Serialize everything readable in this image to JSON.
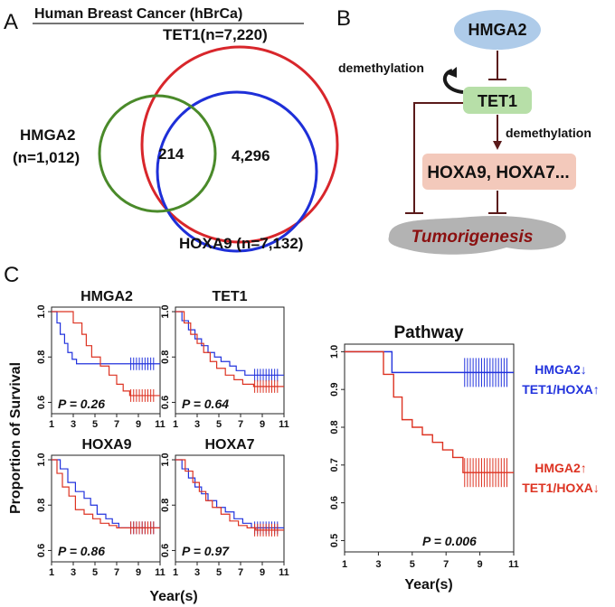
{
  "panel_a": {
    "letter": "A",
    "title": "Human Breast Cancer (hBrCa)",
    "tet1_label": "TET1(n=7,220)",
    "hmga2_label_1": "HMGA2",
    "hmga2_label_2": "(n=1,012)",
    "overlap_all": "214",
    "overlap_tet1_hoxa9": "4,296",
    "hoxa9_label": "HOXA9 (n=7,132)",
    "colors": {
      "hmga2": "#4a8a2a",
      "tet1": "#d8262b",
      "hoxa9": "#1e2fd8"
    }
  },
  "panel_b": {
    "letter": "B",
    "hmga2": "HMGA2",
    "tet1": "TET1",
    "demethylation_left": "demethylation",
    "demethylation_right": "demethylation",
    "targets": "HOXA9, HOXA7...",
    "outcome": "Tumorigenesis",
    "colors": {
      "hmga2_fill": "#aecbe9",
      "tet1_fill": "#b7dfa8",
      "targets_fill": "#f3c9bb",
      "arrow": "#5a1a1a",
      "outcome_text": "#8b1010"
    }
  },
  "panel_c": {
    "letter": "C",
    "ylabel": "Proportion of Survival",
    "xlabel": "Year(s)",
    "colors": {
      "blue": "#2233dd",
      "red": "#dd3322"
    }
  },
  "chart_data": [
    {
      "type": "line",
      "title": "HMGA2",
      "annotation": "P = 0.26",
      "xticks": [
        "1",
        "3",
        "5",
        "7",
        "9",
        "11"
      ],
      "yticks": [
        "0.6",
        "0.8",
        "1.0"
      ],
      "xlim": [
        1,
        11
      ],
      "ylim": [
        0.55,
        1.02
      ],
      "series": [
        {
          "x": [
            1,
            1.5,
            1.8,
            2.2,
            2.5,
            2.9,
            3.3,
            11
          ],
          "y": [
            1.0,
            0.95,
            0.9,
            0.86,
            0.82,
            0.79,
            0.77,
            0.77
          ]
        },
        {
          "x": [
            1,
            2.5,
            3.0,
            3.8,
            4.2,
            4.7,
            5.5,
            6.3,
            7.0,
            7.6,
            8.2,
            11
          ],
          "y": [
            1.0,
            1.0,
            0.95,
            0.9,
            0.85,
            0.8,
            0.76,
            0.72,
            0.68,
            0.65,
            0.63,
            0.63
          ]
        }
      ]
    },
    {
      "type": "line",
      "title": "TET1",
      "annotation": "P = 0.64",
      "xticks": [
        "1",
        "3",
        "5",
        "7",
        "9",
        "11"
      ],
      "yticks": [
        "0.6",
        "0.8",
        "1.0"
      ],
      "xlim": [
        1,
        11
      ],
      "ylim": [
        0.55,
        1.02
      ],
      "series": [
        {
          "x": [
            1,
            1.6,
            2.2,
            2.8,
            3.4,
            4.0,
            4.6,
            5.2,
            6.0,
            6.6,
            7.4,
            11
          ],
          "y": [
            1.0,
            0.96,
            0.92,
            0.88,
            0.85,
            0.82,
            0.8,
            0.78,
            0.76,
            0.74,
            0.72,
            0.72
          ]
        },
        {
          "x": [
            1,
            1.8,
            2.4,
            3.0,
            3.6,
            4.2,
            4.8,
            5.6,
            6.4,
            7.2,
            8.2,
            11
          ],
          "y": [
            1.0,
            0.95,
            0.9,
            0.86,
            0.82,
            0.78,
            0.75,
            0.72,
            0.7,
            0.68,
            0.67,
            0.67
          ]
        }
      ]
    },
    {
      "type": "line",
      "title": "HOXA9",
      "annotation": "P = 0.86",
      "xticks": [
        "1",
        "3",
        "5",
        "7",
        "9",
        "11"
      ],
      "yticks": [
        "0.6",
        "0.8",
        "1.0"
      ],
      "xlim": [
        1,
        11
      ],
      "ylim": [
        0.55,
        1.02
      ],
      "series": [
        {
          "x": [
            1,
            1.8,
            2.5,
            3.2,
            4.0,
            4.6,
            5.2,
            6.0,
            6.6,
            7.2,
            11
          ],
          "y": [
            1.0,
            0.96,
            0.9,
            0.86,
            0.83,
            0.8,
            0.76,
            0.74,
            0.72,
            0.7,
            0.7
          ]
        },
        {
          "x": [
            1,
            1.5,
            2.0,
            2.6,
            3.2,
            4.0,
            4.8,
            5.5,
            6.3,
            7.0,
            11
          ],
          "y": [
            1.0,
            0.94,
            0.88,
            0.84,
            0.78,
            0.76,
            0.74,
            0.72,
            0.71,
            0.7,
            0.7
          ]
        }
      ]
    },
    {
      "type": "line",
      "title": "HOXA7",
      "annotation": "P = 0.97",
      "xticks": [
        "1",
        "3",
        "5",
        "7",
        "9",
        "11"
      ],
      "yticks": [
        "0.6",
        "0.8",
        "1.0"
      ],
      "xlim": [
        1,
        11
      ],
      "ylim": [
        0.55,
        1.02
      ],
      "series": [
        {
          "x": [
            1,
            1.6,
            2.2,
            2.8,
            3.4,
            4.0,
            4.8,
            5.6,
            6.4,
            7.2,
            8.0,
            11
          ],
          "y": [
            1.0,
            0.96,
            0.92,
            0.88,
            0.85,
            0.82,
            0.79,
            0.77,
            0.74,
            0.72,
            0.7,
            0.7
          ]
        },
        {
          "x": [
            1,
            1.9,
            2.6,
            3.2,
            3.8,
            4.4,
            5.2,
            6.0,
            6.8,
            7.6,
            8.4,
            11
          ],
          "y": [
            1.0,
            0.95,
            0.9,
            0.86,
            0.82,
            0.79,
            0.76,
            0.73,
            0.71,
            0.7,
            0.69,
            0.69
          ]
        }
      ]
    },
    {
      "type": "line",
      "title": "Pathway",
      "annotation": "P = 0.006",
      "xticks": [
        "1",
        "3",
        "5",
        "7",
        "9",
        "11"
      ],
      "yticks": [
        "0.5",
        "0.6",
        "0.7",
        "0.8",
        "0.9",
        "1.0"
      ],
      "xlim": [
        1,
        11
      ],
      "ylim": [
        0.47,
        1.02
      ],
      "series": [
        {
          "label_1": "HMGA2",
          "label_2": "TET1/HOXA",
          "x": [
            1,
            3.8,
            11
          ],
          "y": [
            1.0,
            0.945,
            0.945
          ]
        },
        {
          "label_1": "HMGA2",
          "label_2": "TET1/HOXA",
          "x": [
            1,
            2.8,
            3.3,
            3.9,
            4.4,
            5.0,
            5.6,
            6.2,
            6.8,
            7.4,
            8.0,
            11
          ],
          "y": [
            1.0,
            1.0,
            0.94,
            0.88,
            0.82,
            0.8,
            0.78,
            0.76,
            0.74,
            0.72,
            0.68,
            0.68
          ]
        }
      ]
    }
  ]
}
